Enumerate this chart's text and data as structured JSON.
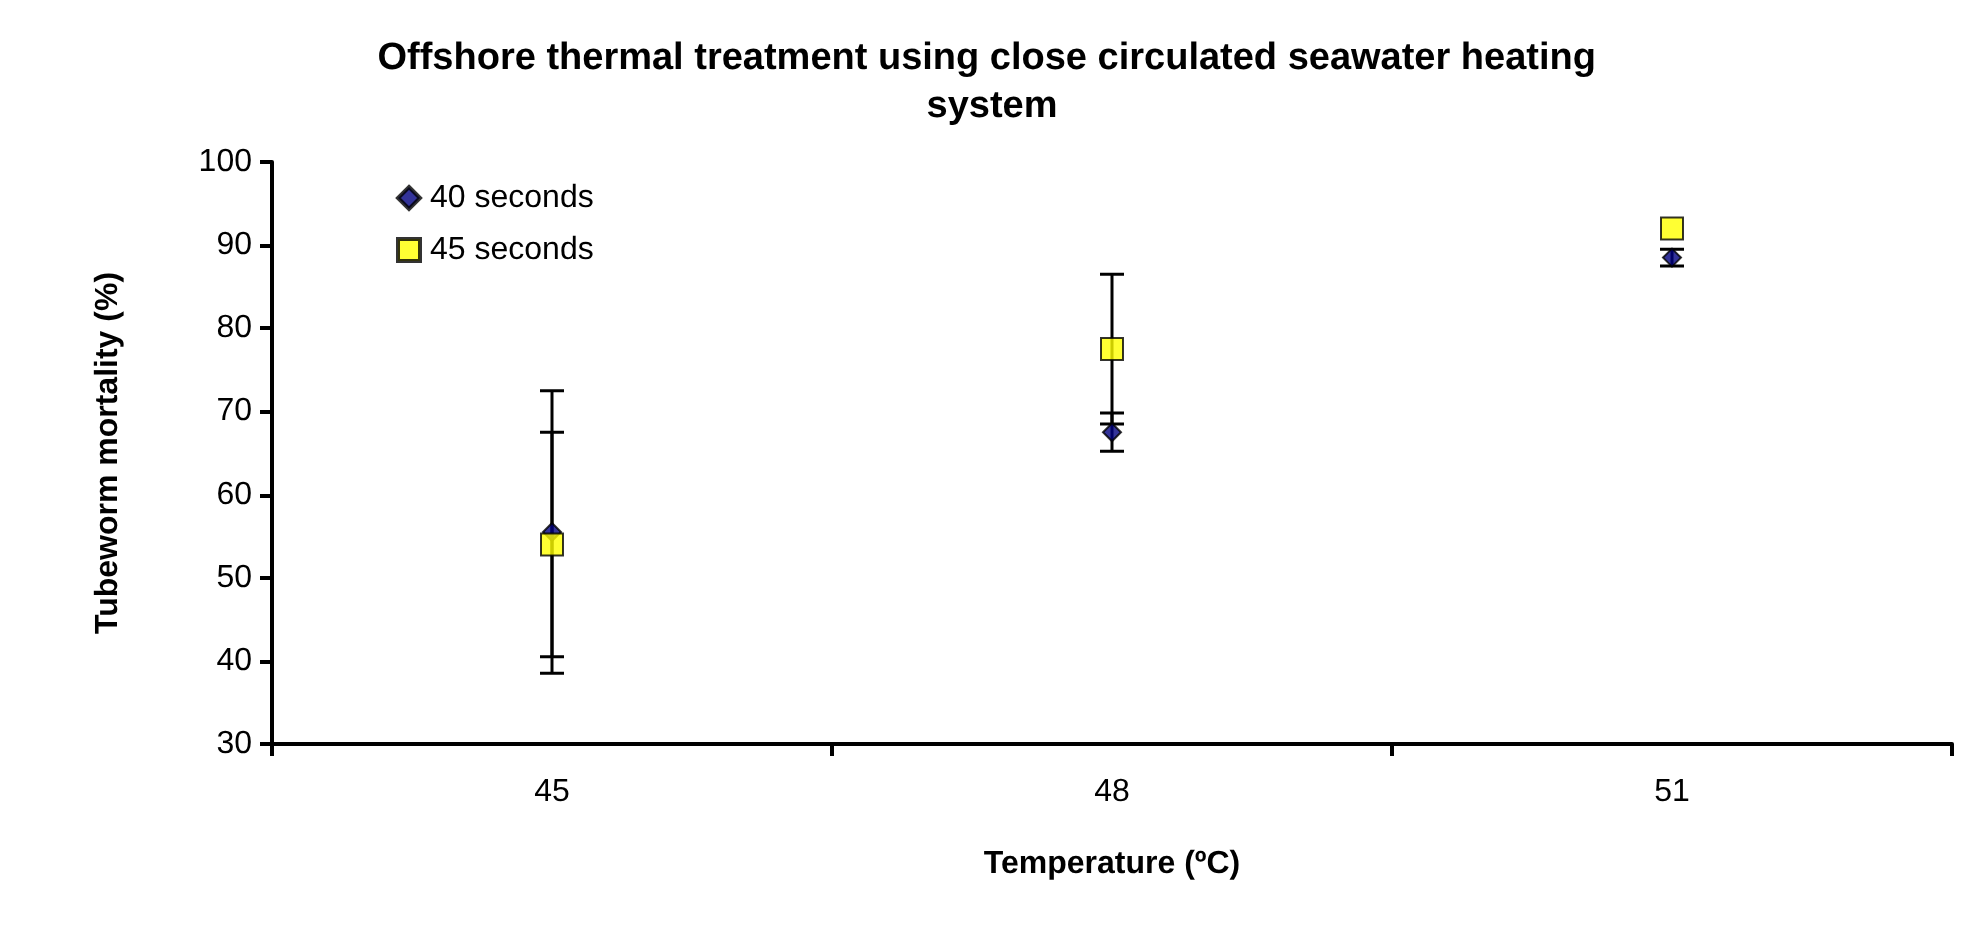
{
  "chart_data": {
    "type": "scatter",
    "title": "Offshore thermal treatment using close circulated seawater heating system",
    "xlabel": "Temperature (ºC)",
    "ylabel": "Tubeworm mortality (%)",
    "categories": [
      "45",
      "48",
      "51"
    ],
    "series": [
      {
        "name": "40 seconds",
        "color": "#000080",
        "marker": "diamond",
        "values": [
          55.5,
          67.5,
          88.5
        ],
        "errors": [
          17,
          2.3,
          1
        ]
      },
      {
        "name": "45 seconds",
        "color": "#ffff00",
        "marker": "square",
        "values": [
          54,
          77.5,
          92
        ],
        "errors": [
          13.5,
          9,
          null
        ]
      }
    ],
    "ylim": [
      30,
      100
    ],
    "yticks": [
      30,
      40,
      50,
      60,
      70,
      80,
      90,
      100
    ],
    "grid": false,
    "legend": "top left"
  }
}
